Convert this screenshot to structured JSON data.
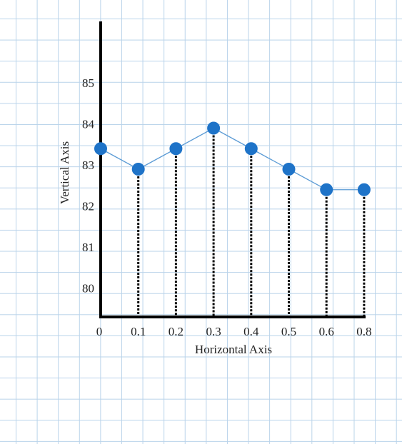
{
  "chart_data": {
    "type": "line",
    "x_label": "Horizontal Axis",
    "y_label": "Vertical Axis",
    "categories": [
      "0",
      "0.1",
      "0.2",
      "0.3",
      "0.4",
      "0.5",
      "0.6",
      "0.8"
    ],
    "values": [
      83.5,
      83,
      83.5,
      84,
      83.5,
      83,
      82.5,
      82.5
    ],
    "color": "#5b9bd5",
    "marker_color": "#1e73c8",
    "ylim": [
      79.4,
      86.6
    ],
    "yticks": [
      80,
      81,
      82,
      83,
      84,
      85
    ]
  }
}
